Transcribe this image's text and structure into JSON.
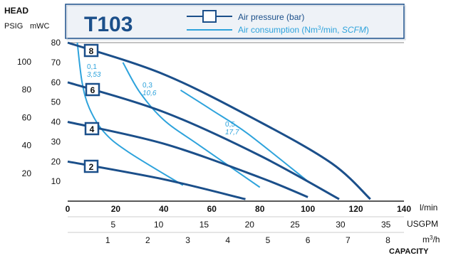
{
  "chart_data": {
    "type": "line",
    "title": "T103",
    "head_label": "HEAD",
    "psig_label": "PSIG",
    "mwc_label": "mWC",
    "capacity_label": "CAPACITY",
    "legend": {
      "pressure": "Air pressure (bar)",
      "consumption_prefix": "Air consumption (Nm",
      "consumption_sup": "3",
      "consumption_mid": "/min, ",
      "consumption_italic": "SCFM",
      "consumption_suffix": ")"
    },
    "axes": {
      "lmin": {
        "unit": "l/min",
        "ticks": [
          "0",
          "20",
          "40",
          "60",
          "80",
          "100",
          "120",
          "140"
        ],
        "range": [
          0,
          140
        ]
      },
      "usgpm": {
        "unit": "USGPM",
        "ticks": [
          "5",
          "10",
          "15",
          "20",
          "25",
          "30",
          "35"
        ]
      },
      "m3h": {
        "unit_main": "m",
        "unit_sup": "3",
        "unit_tail": "/h",
        "ticks": [
          "1",
          "2",
          "3",
          "4",
          "5",
          "6",
          "7",
          "8"
        ]
      },
      "mwc": {
        "ticks": [
          "10",
          "20",
          "30",
          "40",
          "50",
          "60",
          "70",
          "80"
        ],
        "range": [
          0,
          80
        ]
      },
      "psig": {
        "ticks": [
          "20",
          "40",
          "60",
          "80",
          "100"
        ]
      }
    },
    "pressure_curves": [
      {
        "bar": "8",
        "points": [
          [
            0,
            80
          ],
          [
            40,
            64
          ],
          [
            80,
            40
          ],
          [
            110,
            19
          ],
          [
            126,
            1
          ]
        ]
      },
      {
        "bar": "6",
        "points": [
          [
            0,
            60
          ],
          [
            40,
            45
          ],
          [
            80,
            23
          ],
          [
            113,
            1
          ]
        ]
      },
      {
        "bar": "4",
        "points": [
          [
            0,
            40
          ],
          [
            40,
            29
          ],
          [
            80,
            12
          ],
          [
            100,
            2
          ]
        ]
      },
      {
        "bar": "2",
        "points": [
          [
            0,
            20
          ],
          [
            40,
            11
          ],
          [
            74,
            1
          ]
        ]
      }
    ],
    "consumption_curves": [
      {
        "nm3": "0,1",
        "scfm": "3,53",
        "points": [
          [
            4,
            80
          ],
          [
            6,
            60
          ],
          [
            9,
            47
          ],
          [
            15,
            35
          ],
          [
            25,
            25
          ],
          [
            48,
            8
          ]
        ]
      },
      {
        "nm3": "0,3",
        "scfm": "10,6",
        "points": [
          [
            23,
            70
          ],
          [
            30,
            55
          ],
          [
            40,
            41
          ],
          [
            55,
            28
          ],
          [
            80,
            7
          ]
        ]
      },
      {
        "nm3": "0,5",
        "scfm": "17,7",
        "points": [
          [
            47,
            56
          ],
          [
            60,
            46
          ],
          [
            75,
            34
          ],
          [
            100,
            10
          ]
        ]
      }
    ],
    "colors": {
      "pressure": "#1b4f8a",
      "consumption": "#2ea3dc",
      "label_text": "#2ea3dc"
    }
  }
}
